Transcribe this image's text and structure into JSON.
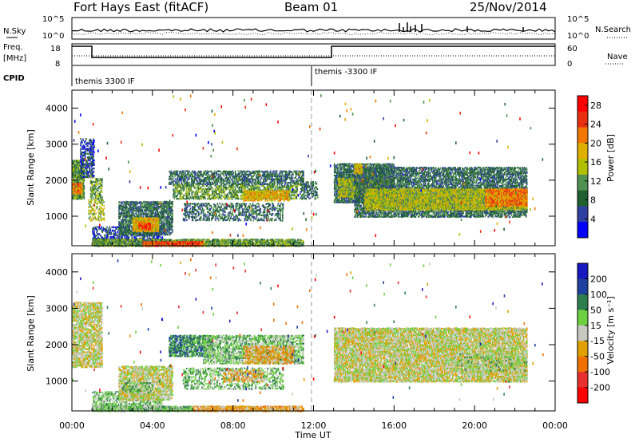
{
  "header": {
    "station": "Fort Hays East (fitACF)",
    "beam": "Beam 01",
    "date": "25/Nov/2014"
  },
  "top_panel": {
    "left_label_1": "N.Sky",
    "left_label_2": "Freq.",
    "left_label_3": "[MHz]",
    "left_label_4": "CPID",
    "right_label_1": "N.Search",
    "right_label_2": "Nave",
    "nsky_ticks": [
      "10^5",
      "10^0"
    ],
    "nsearch_ticks": [
      "10^5",
      "10^0"
    ],
    "freq_ticks": [
      "18",
      "8"
    ],
    "nave_ticks": [
      "60",
      "0"
    ],
    "cpid_1": "themis 3300 IF",
    "cpid_2": "themis -3300 IF"
  },
  "colors": {
    "power": [
      "#0000ff",
      "#3040a0",
      "#206030",
      "#509050",
      "#b0c000",
      "#e0b000",
      "#f07800",
      "#e83010",
      "#ff0000"
    ],
    "velocity": [
      "#1818c0",
      "#2040a0",
      "#2e7d4e",
      "#6cd040",
      "#c8c8c0",
      "#e0a000",
      "#f07000",
      "#e83030",
      "#ff0000"
    ]
  },
  "chart_data": [
    {
      "type": "heatmap",
      "panel": "power",
      "x_unit": "Time UT (hours)",
      "xlim": [
        0,
        24
      ],
      "ylim": [
        180,
        4500
      ],
      "xlabel": "Time UT",
      "ylabel": "Slant Range [km]",
      "x_ticks": [
        "00:00",
        "04:00",
        "08:00",
        "12:00",
        "16:00",
        "20:00",
        "00:00"
      ],
      "y_ticks": [
        1000,
        2000,
        3000,
        4000
      ],
      "colorbar_label": "Power [dB]",
      "colorbar_ticks": [
        4,
        8,
        12,
        16,
        20,
        24,
        28
      ],
      "colorbar_range": [
        0,
        30
      ],
      "bands": [
        {
          "t0": 0.0,
          "t1": 0.6,
          "r0": 1500,
          "r1": 2600,
          "dense": 0.9,
          "lvl": 3
        },
        {
          "t0": 0.0,
          "t1": 0.5,
          "r0": 1650,
          "r1": 1950,
          "dense": 0.9,
          "lvl": 6
        },
        {
          "t0": 0.4,
          "t1": 1.1,
          "r0": 2100,
          "r1": 3200,
          "dense": 0.6,
          "lvl": 1
        },
        {
          "t0": 0.9,
          "t1": 1.5,
          "r0": 1500,
          "r1": 2100,
          "dense": 0.6,
          "lvl": 3
        },
        {
          "t0": 0.8,
          "t1": 1.6,
          "r0": 900,
          "r1": 1500,
          "dense": 0.4,
          "lvl": 4
        },
        {
          "t0": 1.0,
          "t1": 4.5,
          "r0": 250,
          "r1": 750,
          "dense": 0.5,
          "lvl": 1
        },
        {
          "t0": 2.3,
          "t1": 5.0,
          "r0": 500,
          "r1": 1450,
          "dense": 0.75,
          "lvl": 2
        },
        {
          "t0": 3.0,
          "t1": 4.3,
          "r0": 600,
          "r1": 1000,
          "dense": 0.85,
          "lvl": 5
        },
        {
          "t0": 3.3,
          "t1": 3.9,
          "r0": 650,
          "r1": 850,
          "dense": 0.9,
          "lvl": 7
        },
        {
          "t0": 1.0,
          "t1": 11.5,
          "r0": 190,
          "r1": 400,
          "dense": 0.8,
          "lvl": 3
        },
        {
          "t0": 3.5,
          "t1": 6.5,
          "r0": 190,
          "r1": 340,
          "dense": 0.9,
          "lvl": 7
        },
        {
          "t0": 4.8,
          "t1": 11.5,
          "r0": 1900,
          "r1": 2300,
          "dense": 0.6,
          "lvl": 2
        },
        {
          "t0": 5.0,
          "t1": 11.2,
          "r0": 1500,
          "r1": 1900,
          "dense": 0.55,
          "lvl": 3
        },
        {
          "t0": 8.5,
          "t1": 10.8,
          "r0": 1450,
          "r1": 1750,
          "dense": 0.7,
          "lvl": 5
        },
        {
          "t0": 5.5,
          "t1": 10.5,
          "r0": 900,
          "r1": 1400,
          "dense": 0.45,
          "lvl": 2
        },
        {
          "t0": 11.3,
          "t1": 12.2,
          "r0": 1500,
          "r1": 2000,
          "dense": 0.5,
          "lvl": 2
        },
        {
          "t0": 13.0,
          "t1": 16.0,
          "r0": 1400,
          "r1": 2500,
          "dense": 0.8,
          "lvl": 2
        },
        {
          "t0": 13.2,
          "t1": 16.0,
          "r0": 1550,
          "r1": 2100,
          "dense": 0.75,
          "lvl": 4
        },
        {
          "t0": 14.0,
          "t1": 22.6,
          "r0": 1000,
          "r1": 2400,
          "dense": 0.7,
          "lvl": 2
        },
        {
          "t0": 14.5,
          "t1": 22.6,
          "r0": 1200,
          "r1": 1800,
          "dense": 0.85,
          "lvl": 4
        },
        {
          "t0": 20.5,
          "t1": 22.6,
          "r0": 1300,
          "r1": 1800,
          "dense": 0.85,
          "lvl": 6
        },
        {
          "t0": 14.0,
          "t1": 14.4,
          "r0": 2200,
          "r1": 2500,
          "dense": 0.8,
          "lvl": 5
        }
      ]
    },
    {
      "type": "heatmap",
      "panel": "velocity",
      "x_unit": "Time UT (hours)",
      "xlim": [
        0,
        24
      ],
      "ylim": [
        180,
        4500
      ],
      "xlabel": "Time UT",
      "ylabel": "Slant Range [km]",
      "x_ticks": [
        "00:00",
        "04:00",
        "08:00",
        "12:00",
        "16:00",
        "20:00",
        "00:00"
      ],
      "y_ticks": [
        1000,
        2000,
        3000,
        4000
      ],
      "colorbar_label": "Velocity [m s⁻¹]",
      "colorbar_ticks": [
        200,
        100,
        50,
        15,
        -15,
        -50,
        -100,
        -200
      ],
      "bands": [
        {
          "t0": 0.0,
          "t1": 1.5,
          "r0": 1400,
          "r1": 3200,
          "dense": 0.75,
          "lvl": 4
        },
        {
          "t0": 1.0,
          "t1": 4.5,
          "r0": 250,
          "r1": 750,
          "dense": 0.5,
          "lvl": 3
        },
        {
          "t0": 2.3,
          "t1": 5.0,
          "r0": 500,
          "r1": 1450,
          "dense": 0.75,
          "lvl": 4
        },
        {
          "t0": 2.5,
          "t1": 4.0,
          "r0": 700,
          "r1": 1000,
          "dense": 0.5,
          "lvl": 3
        },
        {
          "t0": 1.0,
          "t1": 6.0,
          "r0": 190,
          "r1": 350,
          "dense": 0.85,
          "lvl": 3
        },
        {
          "t0": 6.0,
          "t1": 11.5,
          "r0": 190,
          "r1": 350,
          "dense": 0.8,
          "lvl": 5
        },
        {
          "t0": 4.8,
          "t1": 7.0,
          "r0": 1700,
          "r1": 2300,
          "dense": 0.75,
          "lvl": 2
        },
        {
          "t0": 6.5,
          "t1": 11.5,
          "r0": 1500,
          "r1": 2300,
          "dense": 0.6,
          "lvl": 3
        },
        {
          "t0": 8.5,
          "t1": 11.0,
          "r0": 1500,
          "r1": 2000,
          "dense": 0.6,
          "lvl": 5
        },
        {
          "t0": 5.5,
          "t1": 10.5,
          "r0": 800,
          "r1": 1400,
          "dense": 0.45,
          "lvl": 3
        },
        {
          "t0": 7.5,
          "t1": 9.5,
          "r0": 1000,
          "r1": 1350,
          "dense": 0.4,
          "lvl": 5
        },
        {
          "t0": 13.0,
          "t1": 22.6,
          "r0": 1000,
          "r1": 2500,
          "dense": 0.85,
          "lvl": 4
        },
        {
          "t0": 19.0,
          "t1": 22.6,
          "r0": 1300,
          "r1": 1800,
          "dense": 0.2,
          "lvl": 3
        }
      ]
    }
  ]
}
